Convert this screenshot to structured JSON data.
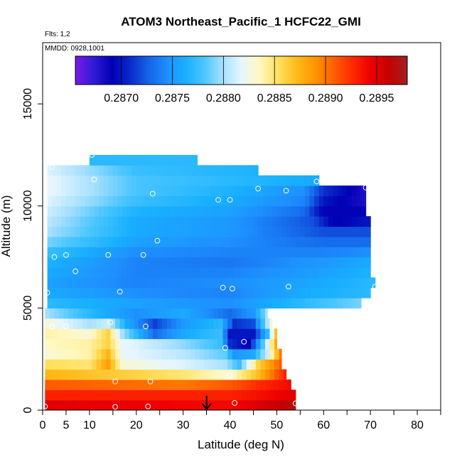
{
  "chart_data": {
    "type": "heatmap",
    "title": "ATOM3 Northeast_Pacific_1 HCFC22_GMI",
    "flights_label": "Flts: 1,2",
    "dates_label": "MMDD: 0928,1001",
    "xlabel": "Latitude (deg N)",
    "ylabel": "Altitude (m)",
    "xlim": [
      0,
      85
    ],
    "ylim": [
      0,
      18000
    ],
    "xticks": [
      0,
      5,
      10,
      20,
      30,
      40,
      50,
      60,
      70,
      80
    ],
    "xticks_minor": [
      15,
      25,
      35,
      45,
      55,
      65,
      75,
      85
    ],
    "yticks": [
      0,
      5000,
      10000,
      15000
    ],
    "grid": false,
    "colorbar": {
      "placement": "top-inside",
      "min": 0.28655,
      "max": 0.2898,
      "ticks": [
        0.287,
        0.2875,
        0.288,
        0.2885,
        0.289,
        0.2895
      ],
      "tick_labels": [
        "0.2870",
        "0.2875",
        "0.2880",
        "0.2885",
        "0.2890",
        "0.2895"
      ],
      "colors": [
        "#7b1ae6",
        "#2f1ad6",
        "#0000b4",
        "#0a2ccc",
        "#1565e8",
        "#1e90ff",
        "#18b0ff",
        "#4cc6ff",
        "#a8e0ff",
        "#e6f6ff",
        "#fff8c0",
        "#ffe060",
        "#ffbb1a",
        "#ff9500",
        "#ff6000",
        "#ff2a00",
        "#ef0000",
        "#c80000",
        "#a02020"
      ]
    },
    "layers": [
      {
        "alt": [
          0,
          500
        ],
        "lat": [
          0.5,
          54
        ],
        "grad": [
          [
            0.5,
            0.2895
          ],
          [
            40,
            0.2894
          ],
          [
            54,
            0.2897
          ]
        ]
      },
      {
        "alt": [
          500,
          1000
        ],
        "lat": [
          0.5,
          54
        ],
        "grad": [
          [
            0.5,
            0.2893
          ],
          [
            40,
            0.2893
          ],
          [
            48,
            0.2894
          ],
          [
            54,
            0.2895
          ]
        ]
      },
      {
        "alt": [
          1000,
          1500
        ],
        "lat": [
          0.5,
          53
        ],
        "grad": [
          [
            0.5,
            0.2891
          ],
          [
            30,
            0.289
          ],
          [
            40,
            0.2891
          ],
          [
            48,
            0.2893
          ],
          [
            53,
            0.2894
          ]
        ]
      },
      {
        "alt": [
          1500,
          2000
        ],
        "lat": [
          0.5,
          52
        ],
        "grad": [
          [
            0.5,
            0.28875
          ],
          [
            20,
            0.2886
          ],
          [
            30,
            0.2885
          ],
          [
            40,
            0.2883
          ],
          [
            46,
            0.2887
          ],
          [
            52,
            0.2893
          ]
        ]
      },
      {
        "alt": [
          2000,
          2500
        ],
        "lat": [
          0.5,
          51
        ],
        "grad": [
          [
            0.5,
            0.28855
          ],
          [
            10,
            0.2885
          ],
          [
            14,
            0.28885
          ],
          [
            17,
            0.2883
          ],
          [
            30,
            0.28815
          ],
          [
            39,
            0.288
          ],
          [
            42,
            0.28775
          ],
          [
            46,
            0.2886
          ],
          [
            51,
            0.2891
          ]
        ]
      },
      {
        "alt": [
          2500,
          3000
        ],
        "lat": [
          0.5,
          51
        ],
        "grad": [
          [
            0.5,
            0.2883
          ],
          [
            10,
            0.2884
          ],
          [
            14,
            0.28875
          ],
          [
            17,
            0.2882
          ],
          [
            30,
            0.28805
          ],
          [
            39,
            0.28785
          ],
          [
            41,
            0.2875
          ],
          [
            45,
            0.2876
          ],
          [
            48,
            0.2881
          ],
          [
            51,
            0.289
          ]
        ]
      },
      {
        "alt": [
          3000,
          3500
        ],
        "lat": [
          0.5,
          50
        ],
        "grad": [
          [
            0.5,
            0.28835
          ],
          [
            10,
            0.2884
          ],
          [
            14,
            0.2886
          ],
          [
            17,
            0.2882
          ],
          [
            30,
            0.28795
          ],
          [
            38,
            0.28775
          ],
          [
            40,
            0.2871
          ],
          [
            44,
            0.2869
          ],
          [
            47,
            0.2878
          ],
          [
            50,
            0.2888
          ]
        ]
      },
      {
        "alt": [
          3500,
          4000
        ],
        "lat": [
          0.5,
          50
        ],
        "grad": [
          [
            0.5,
            0.2884
          ],
          [
            10,
            0.2883
          ],
          [
            14,
            0.2886
          ],
          [
            17,
            0.288
          ],
          [
            24,
            0.2873
          ],
          [
            30,
            0.2876
          ],
          [
            38,
            0.28775
          ],
          [
            40,
            0.287
          ],
          [
            45,
            0.287
          ],
          [
            48,
            0.2877
          ],
          [
            50,
            0.2887
          ]
        ]
      },
      {
        "alt": [
          4000,
          4500
        ],
        "lat": [
          0.5,
          49
        ],
        "grad": [
          [
            0.5,
            0.2883
          ],
          [
            10,
            0.288
          ],
          [
            14,
            0.2881
          ],
          [
            18,
            0.2876
          ],
          [
            24,
            0.28715
          ],
          [
            30,
            0.2875
          ],
          [
            38,
            0.2877
          ],
          [
            41,
            0.2871
          ],
          [
            45,
            0.2872
          ],
          [
            49,
            0.2883
          ]
        ]
      },
      {
        "alt": [
          4500,
          5000
        ],
        "lat": [
          0.5,
          48
        ],
        "grad": [
          [
            0.5,
            0.288
          ],
          [
            10,
            0.2877
          ],
          [
            20,
            0.28745
          ],
          [
            30,
            0.2876
          ],
          [
            40,
            0.2873
          ],
          [
            45,
            0.2875
          ],
          [
            48,
            0.288
          ]
        ]
      },
      {
        "alt": [
          5000,
          5500
        ],
        "lat": [
          1,
          68
        ],
        "grad": [
          [
            1,
            0.2877
          ],
          [
            20,
            0.28755
          ],
          [
            40,
            0.28745
          ],
          [
            55,
            0.2877
          ],
          [
            68,
            0.2879
          ]
        ]
      },
      {
        "alt": [
          5500,
          6000
        ],
        "lat": [
          1,
          70
        ],
        "grad": [
          [
            1,
            0.2876
          ],
          [
            20,
            0.28745
          ],
          [
            40,
            0.2874
          ],
          [
            55,
            0.2876
          ],
          [
            70,
            0.2877
          ]
        ]
      },
      {
        "alt": [
          6000,
          6500
        ],
        "lat": [
          1,
          71
        ],
        "grad": [
          [
            1,
            0.28755
          ],
          [
            20,
            0.2874
          ],
          [
            40,
            0.28745
          ],
          [
            60,
            0.2876
          ],
          [
            71,
            0.2877
          ]
        ]
      },
      {
        "alt": [
          6500,
          7000
        ],
        "lat": [
          1,
          70
        ],
        "grad": [
          [
            1,
            0.2876
          ],
          [
            20,
            0.2874
          ],
          [
            40,
            0.2874
          ],
          [
            60,
            0.28755
          ],
          [
            70,
            0.28765
          ]
        ]
      },
      {
        "alt": [
          7000,
          7500
        ],
        "lat": [
          1,
          70
        ],
        "grad": [
          [
            1,
            0.28765
          ],
          [
            20,
            0.2874
          ],
          [
            40,
            0.28735
          ],
          [
            60,
            0.2875
          ],
          [
            70,
            0.2876
          ]
        ]
      },
      {
        "alt": [
          7500,
          8000
        ],
        "lat": [
          1,
          70
        ],
        "grad": [
          [
            1,
            0.28775
          ],
          [
            20,
            0.28745
          ],
          [
            40,
            0.2874
          ],
          [
            60,
            0.2874
          ],
          [
            70,
            0.28745
          ]
        ]
      },
      {
        "alt": [
          8000,
          8500
        ],
        "lat": [
          1,
          70
        ],
        "grad": [
          [
            1,
            0.2879
          ],
          [
            20,
            0.28755
          ],
          [
            40,
            0.28745
          ],
          [
            60,
            0.2873
          ],
          [
            70,
            0.2873
          ]
        ]
      },
      {
        "alt": [
          8500,
          9000
        ],
        "lat": [
          1,
          70
        ],
        "grad": [
          [
            1,
            0.288
          ],
          [
            20,
            0.2876
          ],
          [
            40,
            0.2875
          ],
          [
            60,
            0.2872
          ],
          [
            70,
            0.2872
          ]
        ]
      },
      {
        "alt": [
          9000,
          9500
        ],
        "lat": [
          1,
          70
        ],
        "grad": [
          [
            1,
            0.28805
          ],
          [
            20,
            0.2876
          ],
          [
            40,
            0.2875
          ],
          [
            58,
            0.2872
          ],
          [
            62,
            0.2869
          ],
          [
            70,
            0.287
          ]
        ]
      },
      {
        "alt": [
          9500,
          10000
        ],
        "lat": [
          1,
          69
        ],
        "grad": [
          [
            1,
            0.2881
          ],
          [
            20,
            0.28765
          ],
          [
            40,
            0.28755
          ],
          [
            56,
            0.2873
          ],
          [
            60,
            0.2869
          ],
          [
            69,
            0.2869
          ]
        ]
      },
      {
        "alt": [
          10000,
          10500
        ],
        "lat": [
          1,
          69
        ],
        "grad": [
          [
            1,
            0.28815
          ],
          [
            20,
            0.28775
          ],
          [
            40,
            0.2876
          ],
          [
            56,
            0.2874
          ],
          [
            60,
            0.287
          ],
          [
            69,
            0.2868
          ]
        ]
      },
      {
        "alt": [
          10500,
          11000
        ],
        "lat": [
          1,
          69
        ],
        "grad": [
          [
            1,
            0.2882
          ],
          [
            20,
            0.2878
          ],
          [
            40,
            0.28765
          ],
          [
            56,
            0.28745
          ],
          [
            60,
            0.2871
          ],
          [
            69,
            0.2868
          ]
        ]
      },
      {
        "alt": [
          11000,
          11500
        ],
        "lat": [
          1,
          59
        ],
        "grad": [
          [
            1,
            0.2882
          ],
          [
            20,
            0.2878
          ],
          [
            40,
            0.2877
          ],
          [
            59,
            0.2876
          ]
        ]
      },
      {
        "alt": [
          11500,
          12000
        ],
        "lat": [
          1,
          46
        ],
        "grad": [
          [
            1,
            0.28815
          ],
          [
            20,
            0.28775
          ],
          [
            46,
            0.28765
          ]
        ]
      },
      {
        "alt": [
          12000,
          12500
        ],
        "lat": [
          10,
          33
        ],
        "grad": [
          [
            10,
            0.2877
          ],
          [
            33,
            0.2877
          ]
        ]
      }
    ],
    "points": [
      [
        0.5,
        180
      ],
      [
        15.5,
        160
      ],
      [
        22.5,
        180
      ],
      [
        41,
        350
      ],
      [
        54,
        330
      ],
      [
        15.5,
        1400
      ],
      [
        23,
        1400
      ],
      [
        40,
        1700
      ],
      [
        43,
        3350
      ],
      [
        39,
        3050
      ],
      [
        2,
        4100
      ],
      [
        5,
        4100
      ],
      [
        14.5,
        4300
      ],
      [
        22,
        4100
      ],
      [
        16.5,
        5800
      ],
      [
        38.5,
        6000
      ],
      [
        40.5,
        5950
      ],
      [
        52.5,
        6050
      ],
      [
        71,
        6050
      ],
      [
        1,
        5750
      ],
      [
        7,
        6800
      ],
      [
        2.5,
        7500
      ],
      [
        5,
        7600
      ],
      [
        14,
        7600
      ],
      [
        21.5,
        7600
      ],
      [
        24.5,
        8300
      ],
      [
        37.5,
        10300
      ],
      [
        40,
        10300
      ],
      [
        23.5,
        10600
      ],
      [
        46,
        10850
      ],
      [
        52,
        10750
      ],
      [
        58.5,
        11200
      ],
      [
        69,
        10900
      ],
      [
        11,
        11300
      ],
      [
        2,
        11900
      ],
      [
        10.5,
        12500
      ]
    ],
    "point_color": "#ffffff",
    "arrow": {
      "lat": 35,
      "alt_from": 700,
      "alt_to": 0
    }
  }
}
